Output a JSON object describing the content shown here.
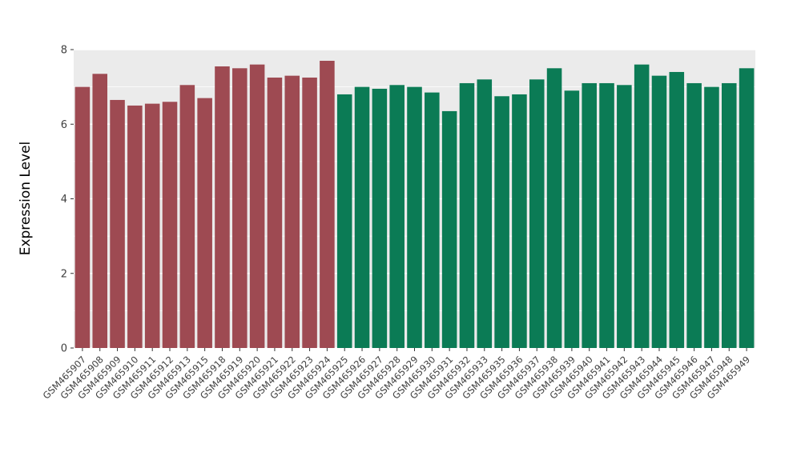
{
  "chart_data": {
    "type": "bar",
    "title": "",
    "xlabel": "",
    "ylabel": "Expression Level",
    "ylim": [
      0,
      8
    ],
    "yticks": [
      0,
      2,
      4,
      6,
      8
    ],
    "yticks_minor": [
      1,
      3,
      5,
      7
    ],
    "grid": true,
    "legend": "none",
    "panel_bg": "#EBEBEB",
    "grid_color": "#FFFFFF",
    "tick_color": "#333333",
    "tick_label_color": "#404040",
    "axis_title_color": "#000000",
    "bar_width_ratio": 0.85,
    "series": [
      {
        "name": "group-1-red",
        "color": "#9E4A52",
        "bars": [
          {
            "label": "GSM465907",
            "value": 7.0
          },
          {
            "label": "GSM465908",
            "value": 7.35
          },
          {
            "label": "GSM465909",
            "value": 6.65
          },
          {
            "label": "GSM465910",
            "value": 6.5
          },
          {
            "label": "GSM465911",
            "value": 6.55
          },
          {
            "label": "GSM465912",
            "value": 6.6
          },
          {
            "label": "GSM465913",
            "value": 7.05
          },
          {
            "label": "GSM465915",
            "value": 6.7
          },
          {
            "label": "GSM465918",
            "value": 7.55
          },
          {
            "label": "GSM465919",
            "value": 7.5
          },
          {
            "label": "GSM465920",
            "value": 7.6
          },
          {
            "label": "GSM465921",
            "value": 7.25
          },
          {
            "label": "GSM465922",
            "value": 7.3
          },
          {
            "label": "GSM465923",
            "value": 7.25
          },
          {
            "label": "GSM465924",
            "value": 7.7
          }
        ]
      },
      {
        "name": "group-2-green",
        "color": "#0B7B55",
        "bars": [
          {
            "label": "GSM465925",
            "value": 6.8
          },
          {
            "label": "GSM465926",
            "value": 7.0
          },
          {
            "label": "GSM465927",
            "value": 6.95
          },
          {
            "label": "GSM465928",
            "value": 7.05
          },
          {
            "label": "GSM465929",
            "value": 7.0
          },
          {
            "label": "GSM465930",
            "value": 6.85
          },
          {
            "label": "GSM465931",
            "value": 6.35
          },
          {
            "label": "GSM465932",
            "value": 7.1
          },
          {
            "label": "GSM465933",
            "value": 7.2
          },
          {
            "label": "GSM465935",
            "value": 6.75
          },
          {
            "label": "GSM465936",
            "value": 6.8
          },
          {
            "label": "GSM465937",
            "value": 7.2
          },
          {
            "label": "GSM465938",
            "value": 7.5
          },
          {
            "label": "GSM465939",
            "value": 6.9
          },
          {
            "label": "GSM465940",
            "value": 7.1
          },
          {
            "label": "GSM465941",
            "value": 7.1
          },
          {
            "label": "GSM465942",
            "value": 7.05
          },
          {
            "label": "GSM465943",
            "value": 7.6
          },
          {
            "label": "GSM465944",
            "value": 7.3
          },
          {
            "label": "GSM465945",
            "value": 7.4
          },
          {
            "label": "GSM465946",
            "value": 7.1
          },
          {
            "label": "GSM465947",
            "value": 7.0
          },
          {
            "label": "GSM465948",
            "value": 7.1
          },
          {
            "label": "GSM465949",
            "value": 7.5
          }
        ]
      }
    ]
  }
}
